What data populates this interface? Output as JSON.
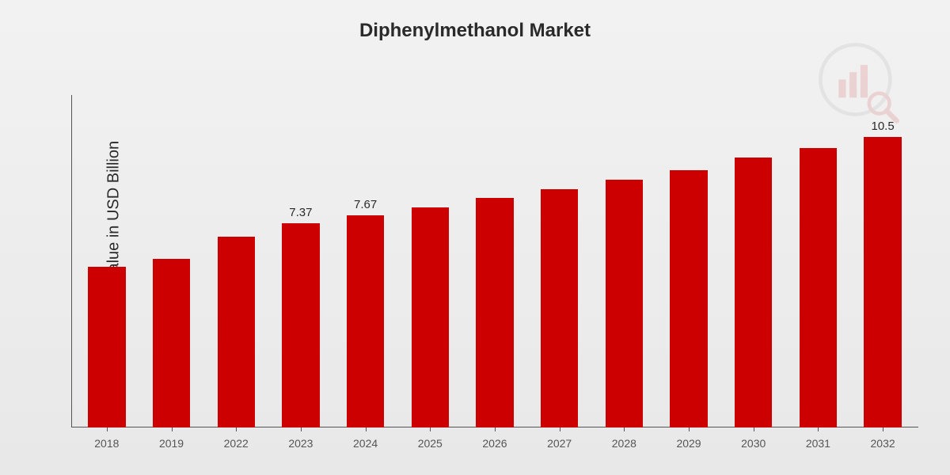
{
  "chart": {
    "type": "bar",
    "title": "Diphenylmethanol Market",
    "y_label": "Market Value in USD Billion",
    "title_fontsize": 24,
    "y_label_fontsize": 20,
    "tick_fontsize": 14,
    "value_fontsize": 15,
    "background_gradient_top": "#f2f2f2",
    "background_gradient_bottom": "#e8e8e8",
    "bar_color": "#cc0000",
    "axis_color": "#555555",
    "text_color": "#2a2a2a",
    "bar_width_pct": 58,
    "ylim": [
      0,
      12
    ],
    "categories": [
      "2018",
      "2019",
      "2022",
      "2023",
      "2024",
      "2025",
      "2026",
      "2027",
      "2028",
      "2029",
      "2030",
      "2031",
      "2032"
    ],
    "values": [
      5.8,
      6.1,
      6.9,
      7.37,
      7.67,
      7.95,
      8.3,
      8.6,
      8.95,
      9.3,
      9.75,
      10.1,
      10.5
    ],
    "show_value_labels": [
      false,
      false,
      false,
      true,
      true,
      false,
      false,
      false,
      false,
      false,
      false,
      false,
      true
    ],
    "value_labels_text": [
      "",
      "",
      "",
      "7.37",
      "7.67",
      "",
      "",
      "",
      "",
      "",
      "",
      "",
      "10.5"
    ]
  },
  "watermark": {
    "bar_color": "#cc0000",
    "ring_color": "#888888",
    "lens_color": "#cc0000"
  }
}
